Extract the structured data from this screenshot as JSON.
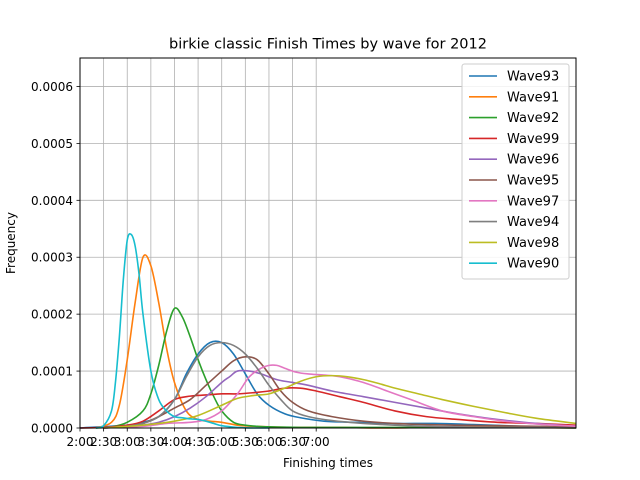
{
  "chart_data": {
    "type": "line",
    "title": "birkie classic Finish Times by wave for 2012",
    "xlabel": "Finishing times",
    "ylabel": "Frequency",
    "x_unit": "minutes",
    "xlim": [
      120,
      750
    ],
    "ylim": [
      0,
      0.00065
    ],
    "x_ticks": [
      {
        "value": 120,
        "label": "2:00"
      },
      {
        "value": 150,
        "label": "2:30"
      },
      {
        "value": 180,
        "label": "3:00"
      },
      {
        "value": 210,
        "label": "3:30"
      },
      {
        "value": 240,
        "label": "4:00"
      },
      {
        "value": 270,
        "label": "4:30"
      },
      {
        "value": 300,
        "label": "5:00"
      },
      {
        "value": 330,
        "label": "5:30"
      },
      {
        "value": 360,
        "label": "6:00"
      },
      {
        "value": 390,
        "label": "6:30"
      },
      {
        "value": 420,
        "label": "7:00"
      }
    ],
    "y_ticks": [
      {
        "value": 0,
        "label": "0.0000"
      },
      {
        "value": 0.0001,
        "label": "0.0001"
      },
      {
        "value": 0.0002,
        "label": "0.0002"
      },
      {
        "value": 0.0003,
        "label": "0.0003"
      },
      {
        "value": 0.0004,
        "label": "0.0004"
      },
      {
        "value": 0.0005,
        "label": "0.0005"
      },
      {
        "value": 0.0006,
        "label": "0.0006"
      }
    ],
    "grid": true,
    "legend": "top-right",
    "series": [
      {
        "name": "Wave93",
        "color": "#1f77b4",
        "x": [
          120,
          180,
          200,
          220,
          240,
          255,
          270,
          285,
          300,
          315,
          330,
          345,
          360,
          380,
          400,
          430,
          470,
          520,
          570,
          620,
          680,
          750
        ],
        "values": [
          0,
          5e-06,
          1e-05,
          2e-05,
          5e-05,
          9.5e-05,
          0.00013,
          0.00015,
          0.00015,
          0.00013,
          9.5e-05,
          6e-05,
          4e-05,
          2.5e-05,
          1.8e-05,
          1.2e-05,
          1e-05,
          8e-06,
          8e-06,
          6e-06,
          3e-06,
          1e-06
        ]
      },
      {
        "name": "Wave91",
        "color": "#ff7f0e",
        "x": [
          140,
          160,
          170,
          180,
          190,
          200,
          210,
          220,
          230,
          240,
          255,
          270,
          285,
          300,
          320,
          340,
          360,
          400,
          450,
          500,
          560,
          620,
          680,
          750
        ],
        "values": [
          0,
          1e-05,
          4e-05,
          0.00012,
          0.00022,
          0.0003,
          0.000285,
          0.00022,
          0.00014,
          8e-05,
          3e-05,
          1.5e-05,
          1.2e-05,
          1e-05,
          5e-06,
          3e-06,
          2e-06,
          1e-06,
          1e-06,
          0,
          1e-06,
          2e-06,
          1e-06,
          0
        ]
      },
      {
        "name": "Wave92",
        "color": "#2ca02c",
        "x": [
          140,
          160,
          180,
          200,
          210,
          220,
          230,
          240,
          250,
          260,
          270,
          280,
          290,
          300,
          315,
          330,
          345,
          360,
          400,
          450,
          500,
          560,
          620,
          680,
          750
        ],
        "values": [
          0,
          2e-06,
          1e-05,
          3e-05,
          6e-05,
          0.00011,
          0.00017,
          0.00021,
          0.000195,
          0.00016,
          0.00012,
          8.5e-05,
          5.5e-05,
          3e-05,
          1e-05,
          5e-06,
          3e-06,
          2e-06,
          1e-06,
          1e-06,
          1e-06,
          1e-06,
          1e-06,
          1e-06,
          0
        ]
      },
      {
        "name": "Wave99",
        "color": "#d62728",
        "x": [
          120,
          150,
          180,
          200,
          220,
          240,
          260,
          280,
          300,
          320,
          340,
          360,
          380,
          400,
          420,
          450,
          480,
          520,
          560,
          600,
          650,
          700,
          750
        ],
        "values": [
          0,
          1e-06,
          5e-06,
          1.2e-05,
          3e-05,
          5e-05,
          5.6e-05,
          5.8e-05,
          6e-05,
          6e-05,
          6.2e-05,
          6.5e-05,
          7e-05,
          7e-05,
          6.5e-05,
          5.5e-05,
          4.5e-05,
          3e-05,
          2e-05,
          1.5e-05,
          1e-05,
          8e-06,
          5e-06
        ]
      },
      {
        "name": "Wave96",
        "color": "#9467bd",
        "x": [
          150,
          180,
          200,
          220,
          240,
          260,
          280,
          300,
          310,
          320,
          335,
          350,
          370,
          390,
          410,
          440,
          480,
          520,
          560,
          600,
          650,
          700,
          750
        ],
        "values": [
          0,
          2e-06,
          5e-06,
          1e-05,
          2e-05,
          3.5e-05,
          5.5e-05,
          8e-05,
          9e-05,
          0.0001,
          0.0001,
          9.5e-05,
          8.5e-05,
          8e-05,
          7.5e-05,
          6.5e-05,
          5.5e-05,
          4.5e-05,
          3.5e-05,
          2.5e-05,
          1.5e-05,
          8e-06,
          3e-06
        ]
      },
      {
        "name": "Wave95",
        "color": "#8c564b",
        "x": [
          150,
          180,
          200,
          220,
          240,
          260,
          280,
          300,
          315,
          330,
          345,
          360,
          375,
          390,
          410,
          440,
          480,
          520,
          560,
          600,
          650,
          700,
          750
        ],
        "values": [
          0,
          3e-06,
          8e-06,
          2e-05,
          3.5e-05,
          5e-05,
          7.5e-05,
          0.0001,
          0.000118,
          0.000125,
          0.00012,
          9.5e-05,
          6.5e-05,
          4.5e-05,
          3e-05,
          2e-05,
          1.2e-05,
          8e-06,
          6e-06,
          5e-06,
          4e-06,
          3e-06,
          2e-06
        ]
      },
      {
        "name": "Wave97",
        "color": "#e377c2",
        "x": [
          150,
          200,
          230,
          260,
          280,
          300,
          320,
          335,
          350,
          360,
          370,
          380,
          395,
          410,
          430,
          450,
          480,
          510,
          540,
          580,
          620,
          660,
          700,
          750
        ],
        "values": [
          0,
          3e-06,
          8e-06,
          1e-05,
          1.5e-05,
          3e-05,
          6e-05,
          9e-05,
          0.000105,
          0.00011,
          0.00011,
          0.000105,
          9.8e-05,
          9.5e-05,
          9.3e-05,
          9e-05,
          8e-05,
          6.5e-05,
          5e-05,
          3e-05,
          2e-05,
          1.2e-05,
          7e-06,
          3e-06
        ]
      },
      {
        "name": "Wave94",
        "color": "#7f7f7f",
        "x": [
          150,
          180,
          200,
          220,
          240,
          255,
          270,
          285,
          300,
          315,
          330,
          345,
          360,
          375,
          390,
          410,
          440,
          480,
          520,
          560,
          600,
          650,
          700,
          750
        ],
        "values": [
          0,
          3e-06,
          8e-06,
          2e-05,
          5e-05,
          9e-05,
          0.000125,
          0.000145,
          0.00015,
          0.000145,
          0.00013,
          0.000105,
          7.5e-05,
          5e-05,
          3e-05,
          2e-05,
          1.3e-05,
          8e-06,
          5e-06,
          3e-06,
          2e-06,
          1e-06,
          1e-06,
          0
        ]
      },
      {
        "name": "Wave98",
        "color": "#bcbd22",
        "x": [
          150,
          200,
          240,
          270,
          300,
          320,
          340,
          360,
          380,
          400,
          420,
          440,
          460,
          480,
          500,
          520,
          550,
          580,
          620,
          660,
          700,
          750
        ],
        "values": [
          0,
          5e-06,
          1.2e-05,
          2.2e-05,
          4e-05,
          5.2e-05,
          5.7e-05,
          6e-05,
          7e-05,
          8.2e-05,
          9e-05,
          9.2e-05,
          9e-05,
          8.5e-05,
          7.8e-05,
          7e-05,
          6e-05,
          5e-05,
          3.8e-05,
          2.7e-05,
          1.7e-05,
          8e-06
        ]
      },
      {
        "name": "Wave90",
        "color": "#17becf",
        "x": [
          140,
          150,
          160,
          165,
          170,
          175,
          180,
          185,
          190,
          195,
          200,
          210,
          220,
          230,
          240,
          250,
          260,
          270,
          280,
          290,
          300,
          320,
          340,
          360
        ],
        "values": [
          0,
          4e-06,
          3e-05,
          8e-05,
          0.00016,
          0.00026,
          0.00033,
          0.00034,
          0.00032,
          0.00027,
          0.0002,
          0.0001,
          5e-05,
          3e-05,
          2e-05,
          1.8e-05,
          1.6e-05,
          1.5e-05,
          1.2e-05,
          8e-06,
          4e-06,
          1e-06,
          0,
          0
        ]
      }
    ]
  }
}
